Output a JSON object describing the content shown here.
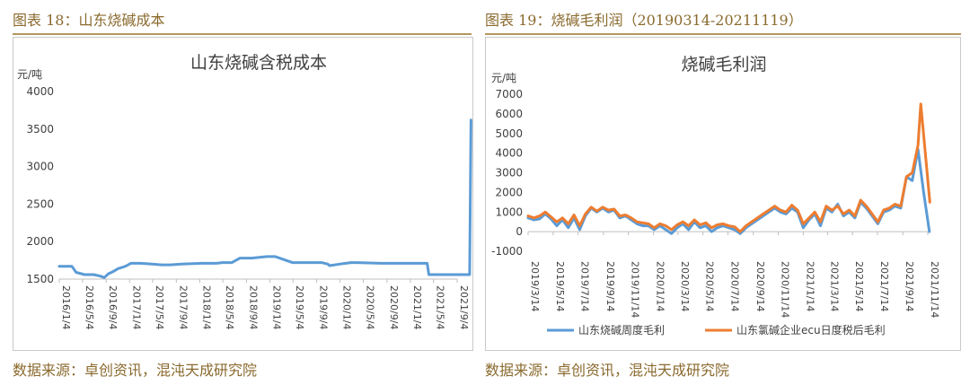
{
  "colors": {
    "accent": "#b39760",
    "label": "#8a6a2e",
    "blue": "#5b9bd5",
    "orange": "#ed7d31"
  },
  "left": {
    "figure_title": "图表 18：山东烧碱成本",
    "source": "数据来源：卓创资讯，混沌天成研究院"
  },
  "right": {
    "figure_title": "图表 19：烧碱毛利润（20190314-20211119）",
    "source": "数据来源：卓创资讯，混沌天成研究院"
  },
  "chart_data": [
    {
      "type": "line",
      "title": "山东烧碱含税成本",
      "ylabel": "元/吨",
      "xlabel": "",
      "ylim": [
        1500,
        4000
      ],
      "yticks": [
        1500,
        2000,
        2500,
        3000,
        3500,
        4000
      ],
      "xticks": [
        "2016/1/4",
        "2016/5/4",
        "2016/9/4",
        "2017/1/4",
        "2017/5/4",
        "2017/9/4",
        "2018/1/4",
        "2018/5/4",
        "2018/9/4",
        "2019/1/4",
        "2019/5/4",
        "2019/9/4",
        "2020/1/4",
        "2020/5/4",
        "2020/9/4",
        "2021/1/4",
        "2021/5/4",
        "2021/9/4"
      ],
      "grid": false,
      "legend": "none",
      "series": [
        {
          "color": "#5b9bd5",
          "x": [
            "2016/1/4",
            "2016/3/10",
            "2016/4/1",
            "2016/5/15",
            "2016/7/1",
            "2016/8/5",
            "2016/8/25",
            "2016/9/15",
            "2016/10/10",
            "2016/11/5",
            "2016/12/1",
            "2016/12/20",
            "2017/1/10",
            "2017/3/1",
            "2017/5/1",
            "2017/6/20",
            "2017/8/1",
            "2017/10/1",
            "2018/1/15",
            "2018/4/1",
            "2018/5/1",
            "2018/6/20",
            "2018/8/1",
            "2018/10/1",
            "2018/12/20",
            "2019/2/1",
            "2019/5/1",
            "2019/7/1",
            "2019/8/20",
            "2019/10/1",
            "2019/11/1",
            "2019/11/10",
            "2020/1/1",
            "2020/3/1",
            "2020/4/1",
            "2020/8/1",
            "2020/12/1",
            "2021/2/1",
            "2021/4/1",
            "2021/4/10",
            "2021/6/1",
            "2021/9/1",
            "2021/11/5",
            "2021/11/8",
            "2021/11/15"
          ],
          "values": [
            1670,
            1670,
            1590,
            1560,
            1560,
            1540,
            1520,
            1570,
            1600,
            1640,
            1660,
            1680,
            1710,
            1710,
            1700,
            1690,
            1690,
            1700,
            1710,
            1710,
            1720,
            1720,
            1780,
            1780,
            1800,
            1800,
            1720,
            1720,
            1720,
            1720,
            1700,
            1680,
            1700,
            1720,
            1720,
            1710,
            1710,
            1710,
            1710,
            1560,
            1560,
            1560,
            1560,
            1560,
            3620
          ]
        }
      ]
    },
    {
      "type": "line",
      "title": "烧碱毛利润",
      "ylabel": "元/吨",
      "xlabel": "",
      "ylim": [
        -1000,
        7000
      ],
      "yticks": [
        -1000,
        0,
        1000,
        2000,
        3000,
        4000,
        5000,
        6000,
        7000
      ],
      "xticks": [
        "2019/3/14",
        "2019/5/14",
        "2019/7/14",
        "2019/9/14",
        "2019/11/14",
        "2020/1/14",
        "2020/3/14",
        "2020/5/14",
        "2020/7/14",
        "2020/9/14",
        "2020/11/14",
        "2021/1/14",
        "2021/3/14",
        "2021/5/14",
        "2021/7/14",
        "2021/9/14",
        "2021/11/14"
      ],
      "grid": false,
      "legend": "bottom",
      "series": [
        {
          "name": "山东烧碱周度毛利",
          "color": "#5b9bd5",
          "x": [
            "2019/3/14",
            "2019/3/28",
            "2019/4/11",
            "2019/4/25",
            "2019/5/9",
            "2019/5/23",
            "2019/6/6",
            "2019/6/20",
            "2019/7/4",
            "2019/7/18",
            "2019/8/1",
            "2019/8/15",
            "2019/8/29",
            "2019/9/12",
            "2019/9/26",
            "2019/10/10",
            "2019/10/24",
            "2019/11/7",
            "2019/11/21",
            "2019/12/5",
            "2019/12/19",
            "2020/1/2",
            "2020/1/16",
            "2020/1/30",
            "2020/2/13",
            "2020/2/27",
            "2020/3/12",
            "2020/3/26",
            "2020/4/9",
            "2020/4/23",
            "2020/5/7",
            "2020/5/21",
            "2020/6/4",
            "2020/6/18",
            "2020/7/2",
            "2020/7/16",
            "2020/7/30",
            "2020/8/13",
            "2020/8/27",
            "2020/9/10",
            "2020/9/24",
            "2020/10/8",
            "2020/10/22",
            "2020/11/5",
            "2020/11/19",
            "2020/12/3",
            "2020/12/17",
            "2020/12/31",
            "2021/1/14",
            "2021/1/28",
            "2021/2/11",
            "2021/2/25",
            "2021/3/11",
            "2021/3/25",
            "2021/4/8",
            "2021/4/22",
            "2021/5/6",
            "2021/5/20",
            "2021/6/3",
            "2021/6/17",
            "2021/7/1",
            "2021/7/15",
            "2021/7/29",
            "2021/8/12",
            "2021/8/26",
            "2021/9/9",
            "2021/9/23",
            "2021/10/7",
            "2021/10/21",
            "2021/11/4",
            "2021/11/18"
          ],
          "values": [
            700,
            600,
            650,
            900,
            650,
            300,
            600,
            200,
            700,
            100,
            800,
            1200,
            1000,
            1200,
            1000,
            1100,
            700,
            800,
            600,
            400,
            300,
            300,
            100,
            300,
            100,
            -100,
            200,
            400,
            100,
            500,
            200,
            300,
            0,
            200,
            300,
            200,
            100,
            -100,
            200,
            400,
            600,
            800,
            1000,
            1200,
            1000,
            900,
            1200,
            1000,
            200,
            600,
            900,
            300,
            1200,
            1000,
            1400,
            800,
            1000,
            700,
            1500,
            1200,
            800,
            400,
            1000,
            1100,
            1300,
            1200,
            2800,
            2600,
            4200,
            2000,
            0
          ]
        },
        {
          "name": "山东氯碱企业ecu日度税后毛利",
          "color": "#ed7d31",
          "x": [
            "2019/3/14",
            "2019/3/28",
            "2019/4/11",
            "2019/4/25",
            "2019/5/9",
            "2019/5/23",
            "2019/6/6",
            "2019/6/20",
            "2019/7/4",
            "2019/7/18",
            "2019/8/1",
            "2019/8/15",
            "2019/8/29",
            "2019/9/12",
            "2019/9/26",
            "2019/10/10",
            "2019/10/24",
            "2019/11/7",
            "2019/11/21",
            "2019/12/5",
            "2019/12/19",
            "2020/1/2",
            "2020/1/16",
            "2020/1/30",
            "2020/2/13",
            "2020/2/27",
            "2020/3/12",
            "2020/3/26",
            "2020/4/9",
            "2020/4/23",
            "2020/5/7",
            "2020/5/21",
            "2020/6/4",
            "2020/6/18",
            "2020/7/2",
            "2020/7/16",
            "2020/7/30",
            "2020/8/13",
            "2020/8/27",
            "2020/9/10",
            "2020/9/24",
            "2020/10/8",
            "2020/10/22",
            "2020/11/5",
            "2020/11/19",
            "2020/12/3",
            "2020/12/17",
            "2020/12/31",
            "2021/1/14",
            "2021/1/28",
            "2021/2/11",
            "2021/2/25",
            "2021/3/11",
            "2021/3/25",
            "2021/4/8",
            "2021/4/22",
            "2021/5/6",
            "2021/5/20",
            "2021/6/3",
            "2021/6/17",
            "2021/7/1",
            "2021/7/15",
            "2021/7/29",
            "2021/8/12",
            "2021/8/26",
            "2021/9/9",
            "2021/9/23",
            "2021/10/7",
            "2021/10/21",
            "2021/10/28",
            "2021/11/19"
          ],
          "values": [
            800,
            700,
            800,
            1000,
            750,
            500,
            700,
            400,
            850,
            300,
            900,
            1250,
            1050,
            1250,
            1100,
            1150,
            800,
            850,
            700,
            500,
            450,
            400,
            200,
            400,
            300,
            100,
            350,
            500,
            300,
            600,
            350,
            450,
            200,
            350,
            400,
            300,
            250,
            0,
            300,
            500,
            700,
            900,
            1100,
            1300,
            1100,
            1000,
            1350,
            1100,
            400,
            700,
            1000,
            500,
            1300,
            1100,
            1300,
            900,
            1100,
            800,
            1600,
            1300,
            900,
            500,
            1100,
            1200,
            1400,
            1300,
            2800,
            3000,
            4400,
            6500,
            1500
          ]
        }
      ]
    }
  ]
}
